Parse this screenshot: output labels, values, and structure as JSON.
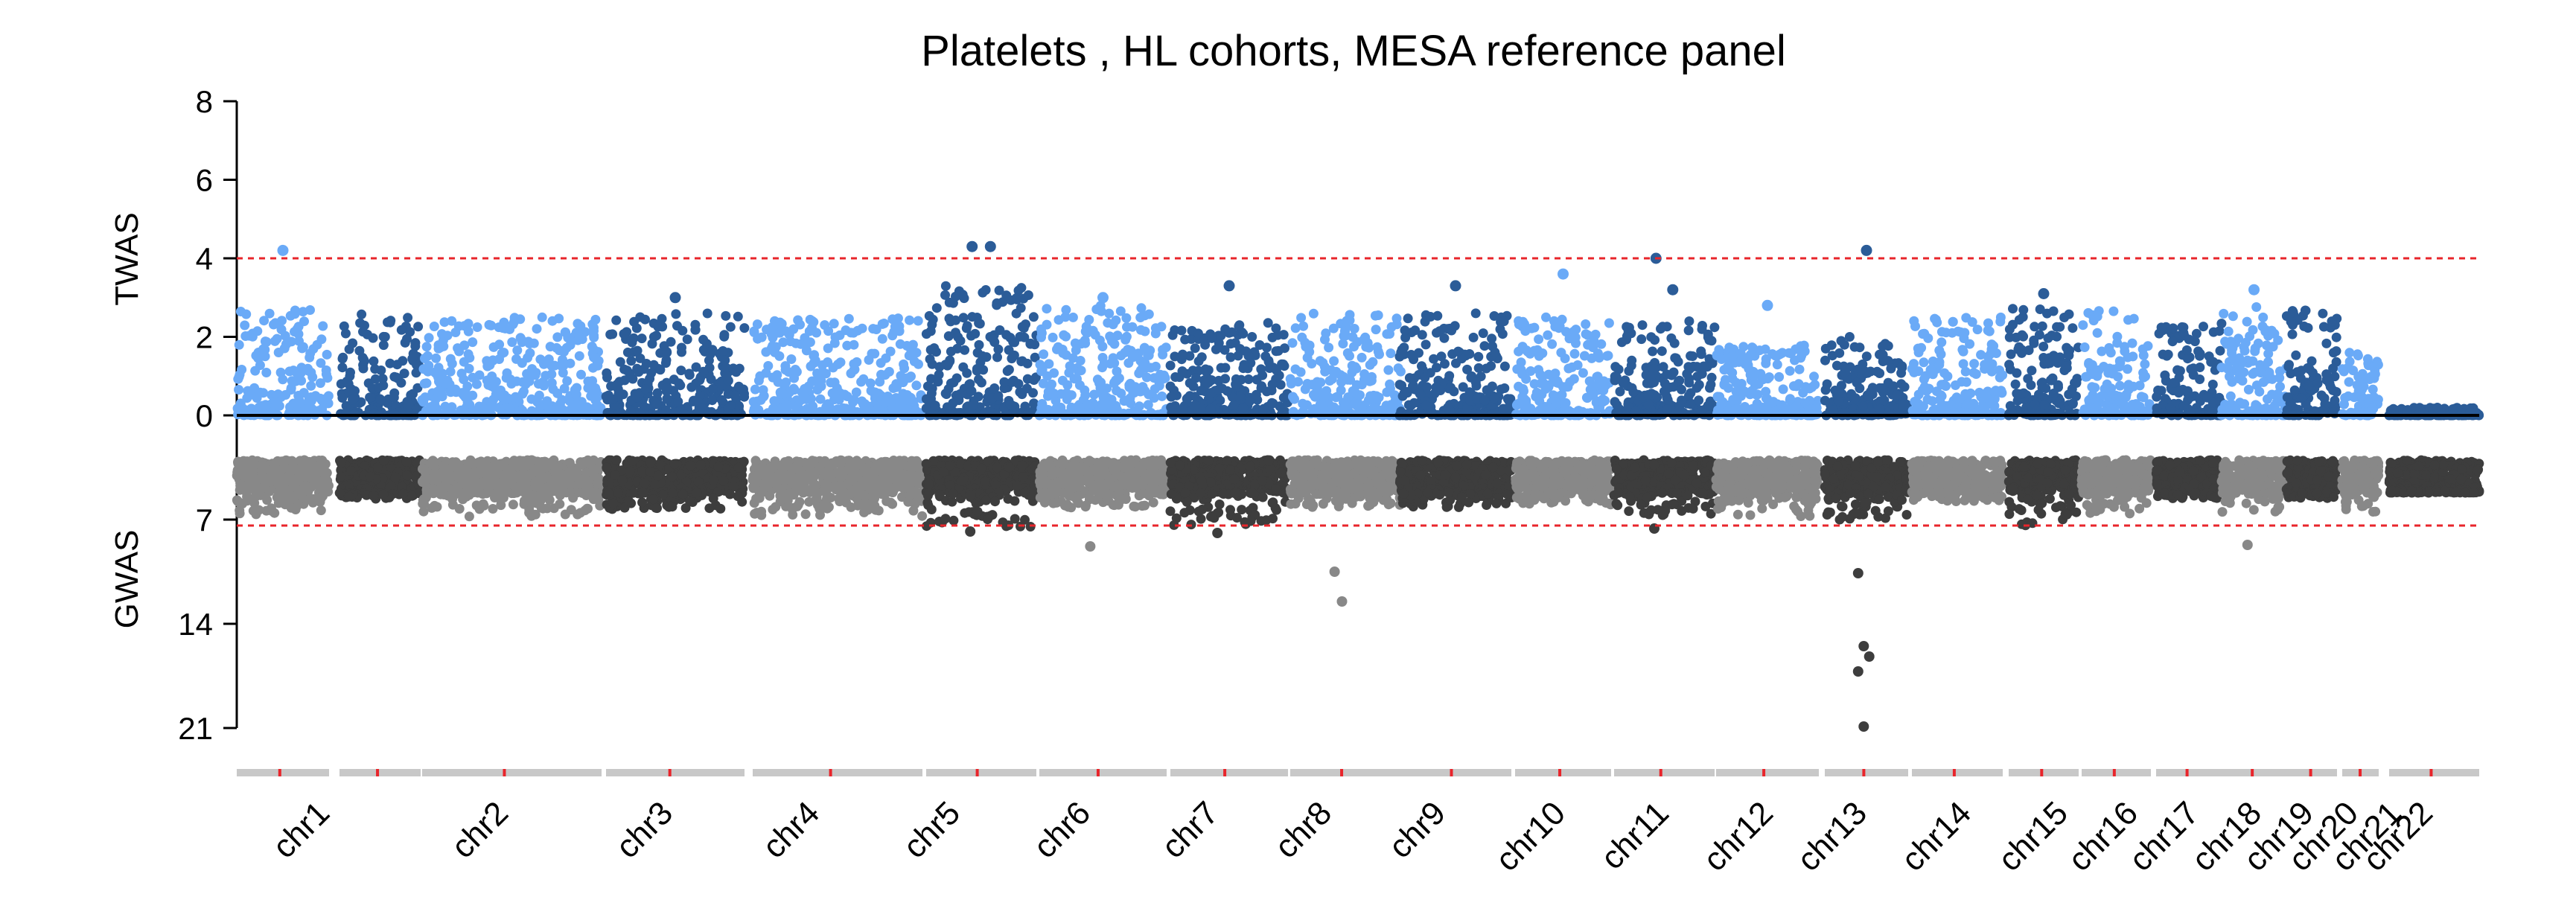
{
  "chart_data": {
    "type": "scatter",
    "subtype": "miami-manhattan",
    "title": "Platelets , HL cohorts, MESA reference panel",
    "colors": {
      "twas_light": "#6aaaf7",
      "twas_dark": "#2b5c98",
      "gwas_light": "#888888",
      "gwas_dark": "#3d3d3d",
      "threshold": "#e8252b",
      "chrom_bar": "#c8c8c8",
      "centromere": "#e8252b"
    },
    "top_panel": {
      "ylabel": "TWAS",
      "ylim": [
        0,
        8
      ],
      "ticks": [
        0,
        2,
        4,
        6,
        8
      ],
      "threshold": 4
    },
    "bottom_panel": {
      "ylabel": "GWAS",
      "ylim": [
        0,
        21
      ],
      "ticks": [
        7,
        14,
        21
      ],
      "threshold": 7.3,
      "baseline_band": [
        3.0,
        5.2
      ]
    },
    "chromosomes": [
      {
        "label": "chr1",
        "twas_max": 2.7,
        "twas_peaks": [
          4.2
        ],
        "gwas_max": 6.8,
        "gwas_peaks": []
      },
      {
        "label": "chr2",
        "twas_max": 2.6,
        "twas_peaks": [],
        "gwas_max": 5.6,
        "gwas_peaks": []
      },
      {
        "label": "chr3",
        "twas_max": 2.5,
        "twas_peaks": [],
        "gwas_max": 6.8,
        "gwas_peaks": []
      },
      {
        "label": "chr4",
        "twas_max": 2.6,
        "twas_peaks": [
          3.0
        ],
        "gwas_max": 6.3,
        "gwas_peaks": []
      },
      {
        "label": "chr5",
        "twas_max": 2.5,
        "twas_peaks": [],
        "gwas_max": 6.8,
        "gwas_peaks": []
      },
      {
        "label": "chr6",
        "twas_max": 3.3,
        "twas_peaks": [
          4.3,
          4.3
        ],
        "gwas_max": 7.5,
        "gwas_peaks": [
          7.8
        ]
      },
      {
        "label": "chr7",
        "twas_max": 2.8,
        "twas_peaks": [
          3.0
        ],
        "gwas_max": 6.2,
        "gwas_peaks": [
          8.8
        ]
      },
      {
        "label": "chr8",
        "twas_max": 2.4,
        "twas_peaks": [
          3.3
        ],
        "gwas_max": 7.5,
        "gwas_peaks": [
          7.9
        ]
      },
      {
        "label": "chr9",
        "twas_max": 2.6,
        "twas_peaks": [],
        "gwas_max": 6.2,
        "gwas_peaks": [
          10.5,
          12.5
        ]
      },
      {
        "label": "chr10",
        "twas_max": 2.6,
        "twas_peaks": [
          3.3
        ],
        "gwas_max": 6.2,
        "gwas_peaks": []
      },
      {
        "label": "chr11",
        "twas_max": 2.5,
        "twas_peaks": [
          3.6
        ],
        "gwas_max": 6.0,
        "gwas_peaks": []
      },
      {
        "label": "chr12",
        "twas_max": 2.4,
        "twas_peaks": [
          4.0,
          3.2
        ],
        "gwas_max": 6.8,
        "gwas_peaks": [
          7.6
        ]
      },
      {
        "label": "chr13",
        "twas_max": 1.8,
        "twas_peaks": [
          2.8
        ],
        "gwas_max": 6.8,
        "gwas_peaks": []
      },
      {
        "label": "chr14",
        "twas_max": 2.0,
        "twas_peaks": [
          4.2
        ],
        "gwas_max": 7.0,
        "gwas_peaks": [
          10.6,
          15.5,
          16.2,
          17.2,
          20.9
        ]
      },
      {
        "label": "chr15",
        "twas_max": 2.5,
        "twas_peaks": [],
        "gwas_max": 5.8,
        "gwas_peaks": []
      },
      {
        "label": "chr16",
        "twas_max": 2.8,
        "twas_peaks": [
          3.1
        ],
        "gwas_max": 7.5,
        "gwas_peaks": []
      },
      {
        "label": "chr17",
        "twas_max": 2.7,
        "twas_peaks": [],
        "gwas_max": 6.8,
        "gwas_peaks": []
      },
      {
        "label": "chr18",
        "twas_max": 2.4,
        "twas_peaks": [],
        "gwas_max": 5.6,
        "gwas_peaks": []
      },
      {
        "label": "chr19",
        "twas_max": 2.8,
        "twas_peaks": [
          3.2
        ],
        "gwas_max": 6.5,
        "gwas_peaks": [
          8.7
        ]
      },
      {
        "label": "chr20",
        "twas_max": 2.7,
        "twas_peaks": [],
        "gwas_max": 5.6,
        "gwas_peaks": []
      },
      {
        "label": "chr21",
        "twas_max": 1.7,
        "twas_peaks": [],
        "gwas_max": 6.5,
        "gwas_peaks": []
      },
      {
        "label": "chr22",
        "twas_max": 0.2,
        "twas_peaks": [],
        "gwas_max": 5.0,
        "gwas_peaks": []
      }
    ]
  }
}
